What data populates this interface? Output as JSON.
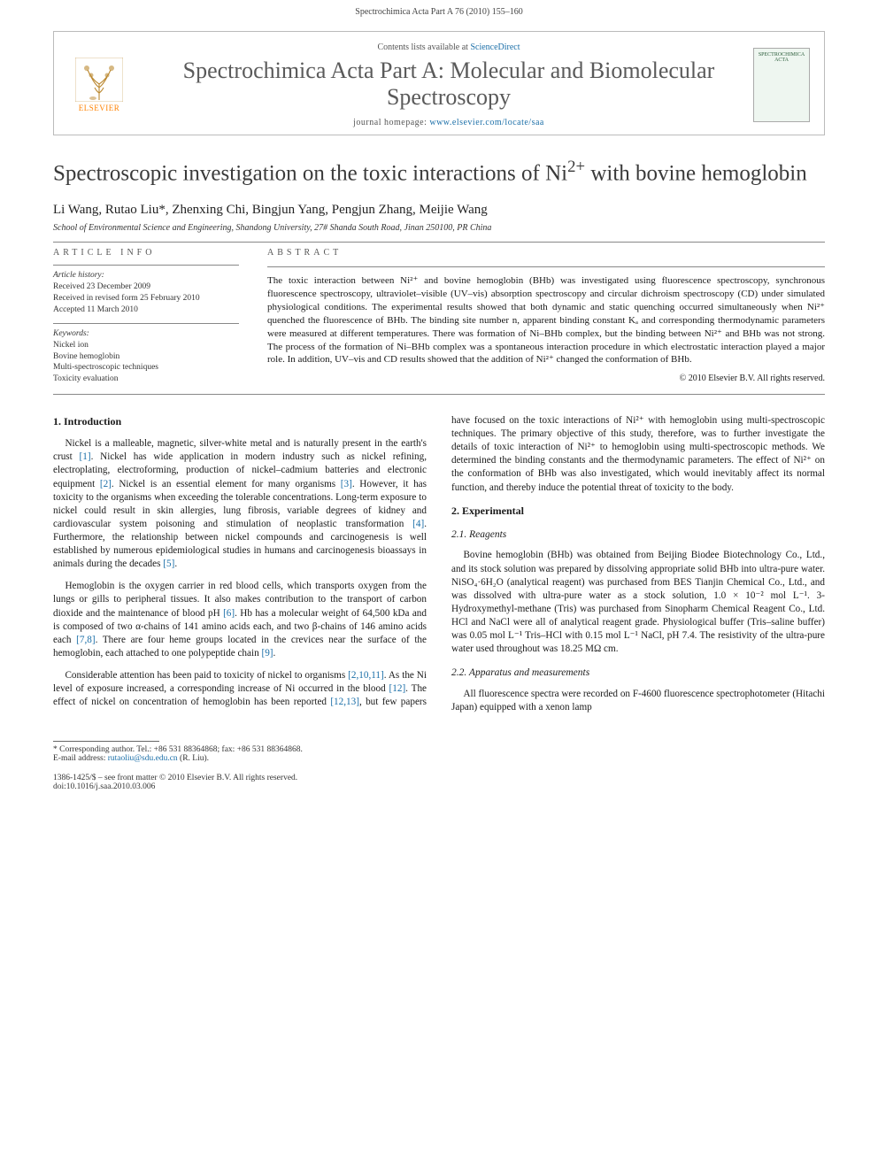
{
  "page_header": "Spectrochimica Acta Part A 76 (2010) 155–160",
  "masthead": {
    "publisher_logo_text": "ELSEVIER",
    "contents_prefix": "Contents lists available at ",
    "contents_link": "ScienceDirect",
    "journal_name": "Spectrochimica Acta Part A: Molecular and Biomolecular Spectroscopy",
    "homepage_prefix": "journal homepage: ",
    "homepage_url": "www.elsevier.com/locate/saa",
    "cover_text": "SPECTROCHIMICA ACTA"
  },
  "article": {
    "title_pre": "Spectroscopic investigation on the toxic interactions of Ni",
    "title_sup": "2+",
    "title_post": " with bovine hemoglobin",
    "authors": "Li Wang, Rutao Liu*, Zhenxing Chi, Bingjun Yang, Pengjun Zhang, Meijie Wang",
    "affiliation": "School of Environmental Science and Engineering, Shandong University, 27# Shanda South Road, Jinan 250100, PR China"
  },
  "info": {
    "heading": "ARTICLE INFO",
    "history_label": "Article history:",
    "received": "Received 23 December 2009",
    "revised": "Received in revised form 25 February 2010",
    "accepted": "Accepted 11 March 2010",
    "keywords_label": "Keywords:",
    "kw1": "Nickel ion",
    "kw2": "Bovine hemoglobin",
    "kw3": "Multi-spectroscopic techniques",
    "kw4": "Toxicity evaluation"
  },
  "abstract": {
    "heading": "ABSTRACT",
    "text": "The toxic interaction between Ni²⁺ and bovine hemoglobin (BHb) was investigated using fluorescence spectroscopy, synchronous fluorescence spectroscopy, ultraviolet–visible (UV–vis) absorption spectroscopy and circular dichroism spectroscopy (CD) under simulated physiological conditions. The experimental results showed that both dynamic and static quenching occurred simultaneously when Ni²⁺ quenched the fluorescence of BHb. The binding site number n, apparent binding constant Kₐ and corresponding thermodynamic parameters were measured at different temperatures. There was formation of Ni–BHb complex, but the binding between Ni²⁺ and BHb was not strong. The process of the formation of Ni–BHb complex was a spontaneous interaction procedure in which electrostatic interaction played a major role. In addition, UV–vis and CD results showed that the addition of Ni²⁺ changed the conformation of BHb.",
    "copyright": "© 2010 Elsevier B.V. All rights reserved."
  },
  "sections": {
    "intro_heading": "1. Introduction",
    "intro_p1": "Nickel is a malleable, magnetic, silver-white metal and is naturally present in the earth's crust [1]. Nickel has wide application in modern industry such as nickel refining, electroplating, electroforming, production of nickel–cadmium batteries and electronic equipment [2]. Nickel is an essential element for many organisms [3]. However, it has toxicity to the organisms when exceeding the tolerable concentrations. Long-term exposure to nickel could result in skin allergies, lung fibrosis, variable degrees of kidney and cardiovascular system poisoning and stimulation of neoplastic transformation [4]. Furthermore, the relationship between nickel compounds and carcinogenesis is well established by numerous epidemiological studies in humans and carcinogenesis bioassays in animals during the decades [5].",
    "intro_p2": "Hemoglobin is the oxygen carrier in red blood cells, which transports oxygen from the lungs or gills to peripheral tissues. It also makes contribution to the transport of carbon dioxide and the maintenance of blood pH [6]. Hb has a molecular weight of 64,500 kDa and is composed of two α-chains of 141 amino acids each, and two β-chains of 146 amino acids each [7,8]. There are four heme groups located in the crevices near the surface of the hemoglobin, each attached to one polypeptide chain [9].",
    "intro_p3": "Considerable attention has been paid to toxicity of nickel to organisms [2,10,11]. As the Ni level of exposure increased, a corresponding increase of Ni occurred in the blood [12]. The effect of nickel on concentration of hemoglobin has been reported [12,13], but few papers have focused on the toxic interactions of Ni²⁺ with hemoglobin using multi-spectroscopic techniques. The primary objective of this study, therefore, was to further investigate the details of toxic interaction of Ni²⁺ to hemoglobin using multi-spectroscopic methods. We determined the binding constants and the thermodynamic parameters. The effect of Ni²⁺ on the conformation of BHb was also investigated, which would inevitably affect its normal function, and thereby induce the potential threat of toxicity to the body.",
    "exp_heading": "2. Experimental",
    "reagents_heading": "2.1. Reagents",
    "reagents_p": "Bovine hemoglobin (BHb) was obtained from Beijing Biodee Biotechnology Co., Ltd., and its stock solution was prepared by dissolving appropriate solid BHb into ultra-pure water. NiSO₄·6H₂O (analytical reagent) was purchased from BES Tianjin Chemical Co., Ltd., and was dissolved with ultra-pure water as a stock solution, 1.0 × 10⁻² mol L⁻¹. 3-Hydroxymethyl-methane (Tris) was purchased from Sinopharm Chemical Reagent Co., Ltd. HCl and NaCl were all of analytical reagent grade. Physiological buffer (Tris–saline buffer) was 0.05 mol L⁻¹ Tris–HCl with 0.15 mol L⁻¹ NaCl, pH 7.4. The resistivity of the ultra-pure water used throughout was 18.25 MΩ cm.",
    "apparatus_heading": "2.2. Apparatus and measurements",
    "apparatus_p": "All fluorescence spectra were recorded on F-4600 fluorescence spectrophotometer (Hitachi Japan) equipped with a xenon lamp"
  },
  "footnote": {
    "corr": "* Corresponding author. Tel.: +86 531 88364868; fax: +86 531 88364868.",
    "email_label": "E-mail address: ",
    "email": "rutaoliu@sdu.edu.cn",
    "email_tail": " (R. Liu)."
  },
  "footer": {
    "issn": "1386-1425/$ – see front matter © 2010 Elsevier B.V. All rights reserved.",
    "doi": "doi:10.1016/j.saa.2010.03.006"
  },
  "refs": {
    "r1": "[1]",
    "r2": "[2]",
    "r3": "[3]",
    "r4": "[4]",
    "r5": "[5]",
    "r6": "[6]",
    "r78": "[7,8]",
    "r9": "[9]",
    "r21011": "[2,10,11]",
    "r12": "[12]",
    "r1213": "[12,13]"
  },
  "colors": {
    "link": "#1b6fa8",
    "elsevier_orange": "#ff8200",
    "text": "#1a1a1a",
    "muted": "#555555",
    "rule": "#888888"
  }
}
